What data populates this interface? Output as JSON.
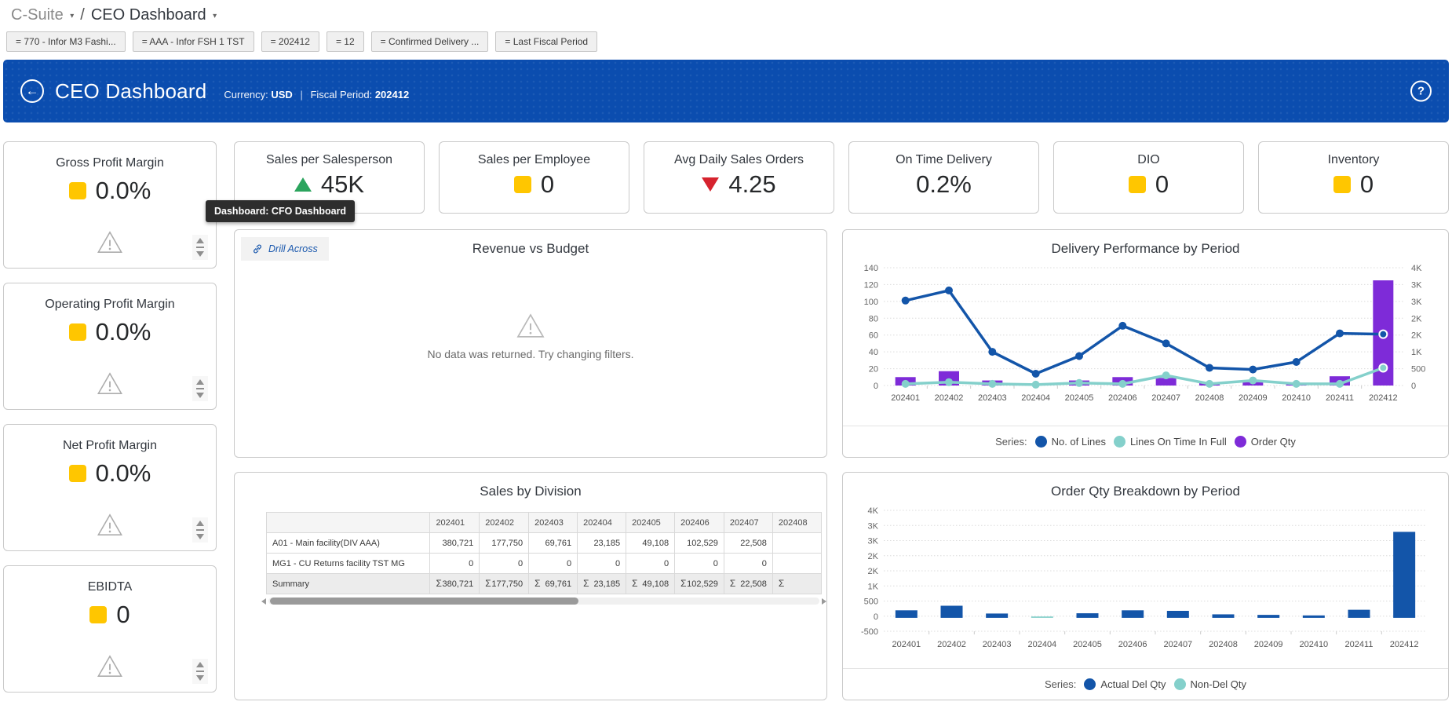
{
  "breadcrumb": {
    "parent": "C-Suite",
    "current": "CEO Dashboard",
    "separator": "/",
    "caret": "▾"
  },
  "filters": [
    "= 770 - Infor M3 Fashi...",
    "= AAA - Infor FSH 1 TST",
    "= 202412",
    "= 12",
    "= Confirmed Delivery ...",
    "= Last Fiscal Period"
  ],
  "header": {
    "title": "CEO Dashboard",
    "back_icon": "←",
    "help_icon": "?",
    "currency_label": "Currency:",
    "currency_value": "USD",
    "pipe": "|",
    "fiscal_label": "Fiscal Period:",
    "fiscal_value": "202412",
    "bg_color": "#0b4daf"
  },
  "tooltip": {
    "text": "Dashboard: CFO Dashboard"
  },
  "kpi_left": [
    {
      "title": "Gross Profit Margin",
      "value": "0.0%",
      "indicator": "square-yellow"
    },
    {
      "title": "Operating Profit Margin",
      "value": "0.0%",
      "indicator": "square-yellow"
    },
    {
      "title": "Net Profit Margin",
      "value": "0.0%",
      "indicator": "square-yellow"
    },
    {
      "title": "EBIDTA",
      "value": "0",
      "indicator": "square-yellow"
    }
  ],
  "kpi_top": [
    {
      "title": "Sales per Salesperson",
      "value": "45K",
      "indicator": "triangle-up-green"
    },
    {
      "title": "Sales per Employee",
      "value": "0",
      "indicator": "square-yellow"
    },
    {
      "title": "Avg Daily Sales Orders",
      "value": "4.25",
      "indicator": "triangle-down-red"
    },
    {
      "title": "On Time Delivery",
      "value": "0.2%",
      "indicator": "none"
    },
    {
      "title": "DIO",
      "value": "0",
      "indicator": "square-yellow"
    },
    {
      "title": "Inventory",
      "value": "0",
      "indicator": "square-yellow"
    }
  ],
  "indicator_colors": {
    "yellow": "#ffc600",
    "green": "#2ba45d",
    "red": "#d6232e"
  },
  "revenue_panel": {
    "title": "Revenue vs Budget",
    "drill_across": "Drill Across",
    "empty_message": "No data was returned. Try changing filters."
  },
  "sales_table": {
    "title": "Sales by Division",
    "columns": [
      "",
      "202401",
      "202402",
      "202403",
      "202404",
      "202405",
      "202406",
      "202407",
      "202408"
    ],
    "rows": [
      {
        "label": "A01 - Main facility(DIV AAA)",
        "values": [
          "380,721",
          "177,750",
          "69,761",
          "23,185",
          "49,108",
          "102,529",
          "22,508",
          ""
        ]
      },
      {
        "label": "MG1 - CU Returns facility TST MG",
        "values": [
          "0",
          "0",
          "0",
          "0",
          "0",
          "0",
          "0",
          ""
        ]
      }
    ],
    "summary_label": "Summary",
    "sigma": "Σ",
    "summary_values": [
      "380,721",
      "177,750",
      "69,761",
      "23,185",
      "49,108",
      "102,529",
      "22,508",
      ""
    ]
  },
  "chart_data": [
    {
      "type": "line+bar",
      "title": "Delivery Performance by Period",
      "categories": [
        "202401",
        "202402",
        "202403",
        "202404",
        "202405",
        "202406",
        "202407",
        "202408",
        "202409",
        "202410",
        "202411",
        "202412"
      ],
      "left_axis_labels": [
        "140",
        "120",
        "100",
        "80",
        "60",
        "40",
        "20",
        "0"
      ],
      "left_max": 140,
      "right_axis_labels": [
        "4K",
        "3K",
        "3K",
        "2K",
        "2K",
        "1K",
        "500",
        "0"
      ],
      "right_to_left_ratio": 25,
      "legend_label": "Series:",
      "series": [
        {
          "name": "No. of Lines",
          "kind": "line",
          "axis": "left",
          "color": "#1355a9",
          "values": [
            101,
            113,
            40,
            14,
            35,
            71,
            50,
            21,
            19,
            28,
            62,
            61
          ]
        },
        {
          "name": "Lines On Time In Full",
          "kind": "line",
          "axis": "left",
          "color": "#84d0cb",
          "values": [
            2,
            4,
            2,
            1,
            3,
            2,
            12,
            2,
            6,
            2,
            2,
            21
          ]
        },
        {
          "name": "Order Qty",
          "kind": "bar",
          "axis": "right",
          "color": "#7e2bd8",
          "values": [
            250,
            425,
            150,
            25,
            150,
            250,
            225,
            75,
            100,
            50,
            275,
            3125
          ]
        }
      ]
    },
    {
      "type": "bar",
      "title": "Order Qty Breakdown by Period",
      "categories": [
        "202401",
        "202402",
        "202403",
        "202404",
        "202405",
        "202406",
        "202407",
        "202408",
        "202409",
        "202410",
        "202411",
        "202412"
      ],
      "y_axis_labels": [
        "4K",
        "3K",
        "3K",
        "2K",
        "2K",
        "1K",
        "500",
        "0",
        "-500"
      ],
      "y_max": 4000,
      "y_min": -500,
      "legend_label": "Series:",
      "series": [
        {
          "name": "Actual Del Qty",
          "kind": "bar",
          "color": "#1355a9",
          "values": [
            280,
            450,
            160,
            0,
            170,
            280,
            260,
            130,
            110,
            90,
            300,
            3200
          ]
        },
        {
          "name": "Non-Del Qty",
          "kind": "bar",
          "color": "#84d0cb",
          "values": [
            0,
            0,
            0,
            50,
            0,
            0,
            0,
            0,
            0,
            0,
            0,
            0
          ]
        }
      ]
    }
  ]
}
